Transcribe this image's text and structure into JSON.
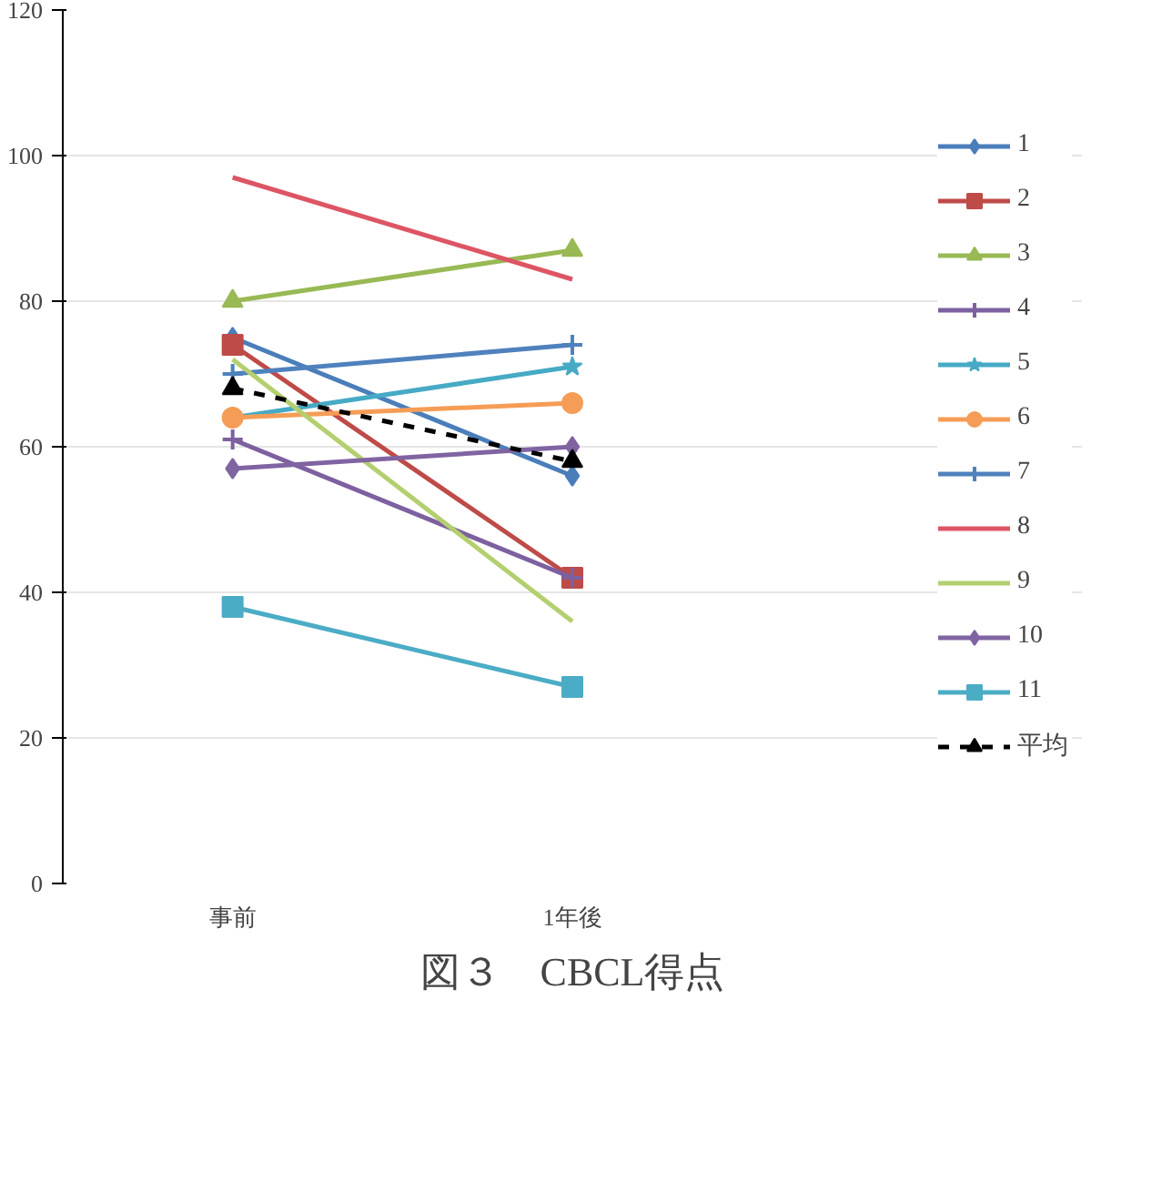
{
  "chart_data": {
    "type": "line",
    "title": "図３　CBCL得点",
    "categories": [
      "事前",
      "1年後"
    ],
    "ylim": [
      0,
      120
    ],
    "yticks": [
      0,
      20,
      40,
      60,
      80,
      100,
      120
    ],
    "grid": "y",
    "legend": "right",
    "series": [
      {
        "name": "1",
        "color": "#4a7ebb",
        "marker": "diamond",
        "values": [
          75,
          56
        ]
      },
      {
        "name": "2",
        "color": "#be4b48",
        "marker": "square",
        "values": [
          74,
          42
        ]
      },
      {
        "name": "3",
        "color": "#98b954",
        "marker": "triangle",
        "values": [
          80,
          87
        ]
      },
      {
        "name": "4",
        "color": "#7d60a0",
        "marker": "cross",
        "values": [
          61,
          42
        ]
      },
      {
        "name": "5",
        "color": "#46aac5",
        "marker": "star",
        "values": [
          64,
          71
        ]
      },
      {
        "name": "6",
        "color": "#f59d56",
        "marker": "circle",
        "values": [
          64,
          66
        ]
      },
      {
        "name": "7",
        "color": "#4f81bd",
        "marker": "cross",
        "values": [
          70,
          74
        ]
      },
      {
        "name": "8",
        "color": "#dd5564",
        "marker": "none",
        "values": [
          97,
          83
        ]
      },
      {
        "name": "9",
        "color": "#b3cf6f",
        "marker": "none",
        "values": [
          72,
          36
        ]
      },
      {
        "name": "10",
        "color": "#8064a2",
        "marker": "diamond",
        "values": [
          57,
          60
        ]
      },
      {
        "name": "11",
        "color": "#4bacc6",
        "marker": "square",
        "values": [
          38,
          27
        ]
      },
      {
        "name": "平均",
        "color": "#000000",
        "marker": "triangle",
        "line_style": "dashed",
        "values": [
          68,
          58
        ]
      }
    ]
  }
}
